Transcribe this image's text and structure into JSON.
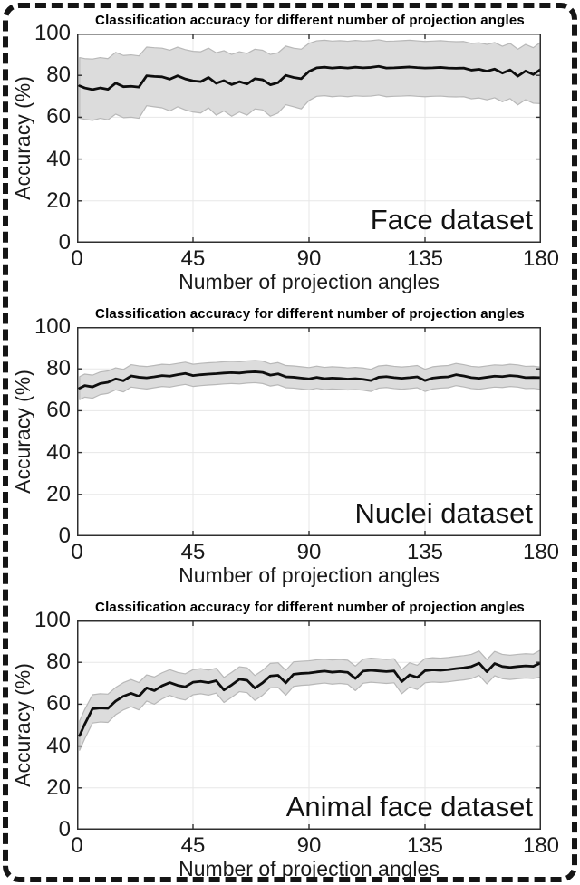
{
  "figure": {
    "background": "#ffffff",
    "border_color": "#151515",
    "band_fill": "#dcdcdc",
    "band_edge": "#b8b8b8",
    "line_color": "#0e0e0e",
    "grid_color": "#e7e7e7",
    "axis_color": "#2f2f2f"
  },
  "chart_data": [
    {
      "type": "line",
      "title": "Classification accuracy for different number of projection angles",
      "xlabel": "Number of projection angles",
      "ylabel": "Accuracy (%)",
      "annotation": "Face dataset",
      "xlim": [
        0,
        180
      ],
      "ylim": [
        0,
        100
      ],
      "xticks": [
        0,
        45,
        90,
        135,
        180
      ],
      "yticks": [
        0,
        20,
        40,
        60,
        80,
        100
      ],
      "xtick_labels": [
        "0",
        "45",
        "90",
        "135",
        "180"
      ],
      "ytick_labels_desc": [
        "100",
        "80",
        "60",
        "40",
        "20",
        "0"
      ],
      "grid": true,
      "legend": "none",
      "x": [
        1,
        3,
        6,
        9,
        12,
        15,
        18,
        21,
        24,
        27,
        30,
        33,
        36,
        39,
        42,
        45,
        48,
        51,
        54,
        57,
        60,
        63,
        66,
        69,
        72,
        75,
        78,
        81,
        84,
        87,
        90,
        93,
        96,
        99,
        102,
        105,
        108,
        111,
        114,
        117,
        120,
        123,
        126,
        129,
        132,
        135,
        138,
        141,
        144,
        147,
        150,
        153,
        156,
        159,
        162,
        165,
        168,
        171,
        174,
        177,
        180
      ],
      "series": [
        {
          "name": "mean accuracy",
          "values": [
            75.0,
            74.0,
            73.2,
            74.0,
            73.3,
            76.3,
            74.6,
            74.8,
            74.4,
            79.8,
            79.5,
            79.3,
            78.2,
            79.8,
            78.3,
            77.4,
            77.0,
            79.0,
            76.2,
            77.5,
            75.6,
            77.0,
            75.9,
            78.4,
            77.9,
            75.5,
            76.5,
            80.0,
            79.0,
            78.4,
            81.9,
            83.6,
            83.9,
            83.5,
            83.8,
            83.5,
            83.9,
            83.6,
            83.8,
            84.3,
            83.5,
            83.6,
            83.8,
            84.0,
            83.7,
            83.5,
            83.6,
            83.8,
            83.5,
            83.4,
            83.5,
            82.5,
            82.9,
            82.0,
            83.0,
            81.1,
            82.6,
            79.6,
            82.1,
            80.4,
            83.0
          ]
        },
        {
          "name": "band upper",
          "values": [
            88.5,
            88.0,
            87.8,
            88.5,
            88.0,
            91.0,
            89.5,
            89.8,
            89.3,
            93.5,
            93.2,
            93.0,
            92.0,
            93.5,
            92.3,
            91.5,
            91.3,
            93.0,
            90.8,
            91.8,
            90.0,
            91.3,
            90.5,
            92.5,
            92.0,
            90.0,
            90.8,
            94.0,
            93.0,
            92.5,
            95.3,
            96.5,
            96.8,
            96.4,
            96.6,
            96.3,
            96.7,
            96.4,
            96.6,
            97.0,
            96.3,
            96.4,
            96.6,
            96.8,
            96.5,
            96.2,
            96.4,
            96.6,
            96.3,
            96.1,
            96.2,
            95.3,
            95.6,
            94.8,
            95.7,
            93.9,
            95.3,
            92.5,
            94.8,
            93.2,
            96.0
          ]
        },
        {
          "name": "band lower",
          "values": [
            59.5,
            59.0,
            58.5,
            59.5,
            58.8,
            61.5,
            59.8,
            60.0,
            59.5,
            65.5,
            65.0,
            64.5,
            63.0,
            65.0,
            63.5,
            62.5,
            62.0,
            64.5,
            61.0,
            63.0,
            60.5,
            62.5,
            61.0,
            64.0,
            63.5,
            60.5,
            62.0,
            66.0,
            65.0,
            64.0,
            68.0,
            70.0,
            70.3,
            69.8,
            70.1,
            69.8,
            70.2,
            70.0,
            70.1,
            70.6,
            69.8,
            70.0,
            70.1,
            70.3,
            70.0,
            69.8,
            70.0,
            70.1,
            69.8,
            69.7,
            69.8,
            68.8,
            69.2,
            68.3,
            69.3,
            67.4,
            68.9,
            65.9,
            68.4,
            66.7,
            66.5
          ]
        }
      ]
    },
    {
      "type": "line",
      "title": "Classification accuracy for different number of projection angles",
      "xlabel": "Number of projection angles",
      "ylabel": "Accuracy (%)",
      "annotation": "Nuclei dataset",
      "xlim": [
        0,
        180
      ],
      "ylim": [
        0,
        100
      ],
      "xticks": [
        0,
        45,
        90,
        135,
        180
      ],
      "yticks": [
        0,
        20,
        40,
        60,
        80,
        100
      ],
      "xtick_labels": [
        "0",
        "45",
        "90",
        "135",
        "180"
      ],
      "ytick_labels_desc": [
        "100",
        "80",
        "60",
        "40",
        "20",
        "0"
      ],
      "grid": true,
      "legend": "none",
      "x": [
        1,
        3,
        6,
        9,
        12,
        15,
        18,
        21,
        24,
        27,
        30,
        33,
        36,
        39,
        42,
        45,
        48,
        51,
        54,
        57,
        60,
        63,
        66,
        69,
        72,
        75,
        78,
        81,
        84,
        87,
        90,
        93,
        96,
        99,
        102,
        105,
        108,
        111,
        114,
        117,
        120,
        123,
        126,
        129,
        132,
        135,
        138,
        141,
        144,
        147,
        150,
        153,
        156,
        159,
        162,
        165,
        168,
        171,
        174,
        177,
        180
      ],
      "series": [
        {
          "name": "mean accuracy",
          "values": [
            70.8,
            72.0,
            71.4,
            73.0,
            73.6,
            75.2,
            74.3,
            76.6,
            76.0,
            75.7,
            76.2,
            76.8,
            76.5,
            77.2,
            77.8,
            76.8,
            77.2,
            77.5,
            77.7,
            78.0,
            78.2,
            78.0,
            78.4,
            78.6,
            78.3,
            77.0,
            77.6,
            76.2,
            76.0,
            75.6,
            75.2,
            75.9,
            75.3,
            75.6,
            75.4,
            75.1,
            75.3,
            75.0,
            74.4,
            76.0,
            76.3,
            75.8,
            75.5,
            75.8,
            76.2,
            74.4,
            75.6,
            76.0,
            76.2,
            77.2,
            76.6,
            75.8,
            75.5,
            76.0,
            76.5,
            76.3,
            76.8,
            76.5,
            75.8,
            75.9,
            75.8
          ]
        },
        {
          "name": "band upper",
          "values": [
            76.3,
            77.5,
            77.0,
            78.5,
            79.0,
            80.5,
            79.7,
            82.0,
            81.4,
            81.1,
            81.6,
            82.2,
            82.0,
            82.6,
            83.2,
            82.2,
            82.6,
            82.9,
            83.1,
            83.4,
            83.6,
            83.4,
            83.8,
            84.0,
            83.7,
            82.4,
            83.0,
            81.6,
            81.4,
            81.0,
            80.6,
            81.3,
            80.7,
            81.0,
            80.8,
            80.5,
            80.7,
            80.4,
            79.8,
            81.4,
            81.7,
            81.2,
            80.9,
            81.2,
            81.6,
            79.8,
            81.0,
            81.4,
            81.6,
            82.6,
            82.0,
            81.2,
            80.9,
            81.4,
            81.9,
            81.7,
            82.2,
            81.9,
            81.2,
            81.3,
            80.8
          ]
        },
        {
          "name": "band lower",
          "values": [
            65.3,
            66.5,
            66.0,
            67.7,
            68.3,
            70.0,
            69.0,
            71.3,
            70.8,
            70.4,
            71.0,
            71.6,
            71.3,
            72.0,
            72.6,
            71.6,
            72.0,
            72.3,
            72.5,
            72.8,
            73.0,
            72.8,
            73.2,
            73.4,
            73.0,
            71.8,
            72.4,
            71.0,
            70.8,
            70.4,
            70.0,
            70.7,
            70.1,
            70.4,
            70.2,
            69.9,
            70.1,
            69.8,
            69.2,
            70.8,
            71.1,
            70.6,
            70.3,
            70.6,
            71.0,
            69.2,
            70.4,
            70.8,
            71.0,
            72.0,
            71.4,
            70.6,
            70.3,
            70.8,
            71.3,
            71.1,
            71.6,
            71.3,
            70.6,
            70.7,
            70.2
          ]
        }
      ]
    },
    {
      "type": "line",
      "title": "Classification accuracy for different number of projection angles",
      "xlabel": "Number of projection angles",
      "ylabel": "Accuracy (%)",
      "annotation": "Animal face dataset",
      "xlim": [
        0,
        180
      ],
      "ylim": [
        0,
        100
      ],
      "xticks": [
        0,
        45,
        90,
        135,
        180
      ],
      "yticks": [
        0,
        20,
        40,
        60,
        80,
        100
      ],
      "xtick_labels": [
        "0",
        "45",
        "90",
        "135",
        "180"
      ],
      "ytick_labels_desc": [
        "100",
        "80",
        "60",
        "40",
        "20",
        "0"
      ],
      "grid": true,
      "legend": "none",
      "x": [
        1,
        3,
        6,
        9,
        12,
        15,
        18,
        21,
        24,
        27,
        30,
        33,
        36,
        39,
        42,
        45,
        48,
        51,
        54,
        57,
        60,
        63,
        66,
        69,
        72,
        75,
        78,
        81,
        84,
        87,
        90,
        93,
        96,
        99,
        102,
        105,
        108,
        111,
        114,
        117,
        120,
        123,
        126,
        129,
        132,
        135,
        138,
        141,
        144,
        147,
        150,
        153,
        156,
        159,
        162,
        165,
        168,
        171,
        174,
        177,
        180
      ],
      "series": [
        {
          "name": "mean accuracy",
          "values": [
            45.0,
            50.5,
            57.8,
            58.2,
            58.0,
            61.5,
            63.8,
            65.2,
            63.8,
            67.8,
            66.5,
            68.8,
            70.3,
            69.0,
            68.3,
            70.5,
            70.9,
            70.3,
            71.2,
            66.8,
            69.2,
            71.9,
            71.4,
            67.7,
            70.2,
            73.5,
            73.8,
            70.2,
            74.3,
            74.7,
            74.9,
            75.4,
            75.8,
            75.3,
            75.6,
            75.2,
            72.3,
            75.8,
            76.2,
            75.9,
            75.6,
            75.9,
            70.8,
            74.0,
            72.8,
            76.0,
            76.4,
            76.2,
            76.5,
            77.0,
            77.4,
            78.0,
            79.6,
            75.5,
            79.4,
            78.0,
            77.6,
            78.0,
            78.3,
            78.1,
            79.8
          ]
        },
        {
          "name": "band upper",
          "values": [
            52.0,
            57.5,
            64.5,
            65.0,
            64.8,
            68.0,
            70.3,
            71.8,
            70.3,
            74.0,
            73.0,
            75.0,
            76.5,
            75.2,
            74.5,
            76.5,
            77.0,
            76.3,
            77.2,
            72.8,
            75.2,
            77.9,
            77.4,
            73.7,
            76.2,
            79.5,
            79.8,
            76.2,
            80.2,
            80.5,
            80.7,
            81.2,
            81.5,
            81.1,
            81.4,
            81.0,
            78.2,
            81.5,
            82.0,
            81.7,
            81.4,
            81.7,
            76.5,
            79.8,
            78.6,
            81.8,
            82.2,
            82.0,
            82.3,
            82.8,
            83.2,
            83.8,
            85.4,
            81.3,
            85.2,
            83.8,
            83.4,
            83.8,
            84.1,
            83.9,
            86.0
          ]
        },
        {
          "name": "band lower",
          "values": [
            38.0,
            43.5,
            51.0,
            51.5,
            51.3,
            55.0,
            57.3,
            58.8,
            57.3,
            61.5,
            60.0,
            62.5,
            64.2,
            62.8,
            62.0,
            64.5,
            65.0,
            64.3,
            65.3,
            60.8,
            63.3,
            66.0,
            65.5,
            61.8,
            64.3,
            67.8,
            68.0,
            64.3,
            68.5,
            69.0,
            69.2,
            69.7,
            70.1,
            69.6,
            69.9,
            69.5,
            66.5,
            70.0,
            70.5,
            70.2,
            69.9,
            70.2,
            65.0,
            68.2,
            67.0,
            70.2,
            70.6,
            70.4,
            70.7,
            71.2,
            71.6,
            72.2,
            73.8,
            69.7,
            73.6,
            72.2,
            71.8,
            72.2,
            72.5,
            72.3,
            73.0
          ]
        }
      ]
    }
  ]
}
